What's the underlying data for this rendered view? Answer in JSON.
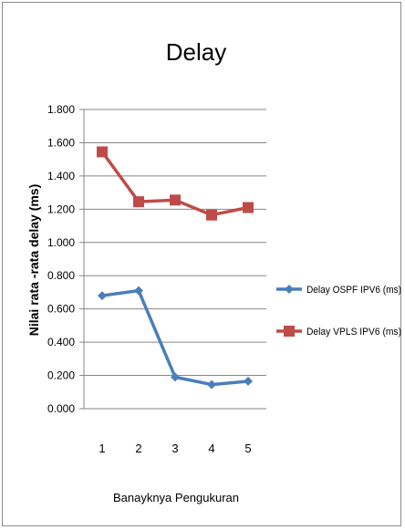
{
  "chart_data": {
    "type": "line",
    "title": "Delay",
    "xlabel": "Banayknya Pengukuran",
    "ylabel": "Nilai rata -rata delay (ms)",
    "categories": [
      "1",
      "2",
      "3",
      "4",
      "5"
    ],
    "ylim": [
      0,
      1.8
    ],
    "yticks": [
      "0.000",
      "0.200",
      "0.400",
      "0.600",
      "0.800",
      "1.000",
      "1.200",
      "1.400",
      "1.600",
      "1.800"
    ],
    "grid": true,
    "legend_position": "right",
    "series": [
      {
        "name": "Delay OSPF IPV6 (ms)",
        "values": [
          0.68,
          0.71,
          0.19,
          0.145,
          0.165
        ],
        "color": "#4a7ebb",
        "marker": "diamond"
      },
      {
        "name": "Delay VPLS IPV6 (ms)",
        "values": [
          1.545,
          1.245,
          1.255,
          1.165,
          1.21
        ],
        "color": "#be4b48",
        "marker": "square"
      }
    ]
  }
}
